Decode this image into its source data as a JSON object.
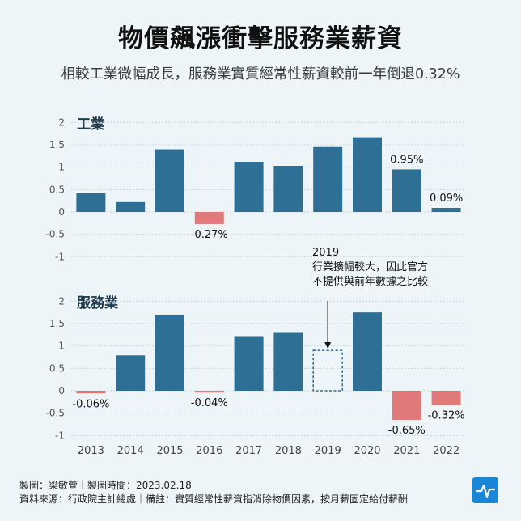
{
  "header": {
    "title": "物價飆漲衝擊服務業薪資",
    "subtitle": "相較工業微幅成長，服務業實質經常性薪資較前一年倒退0.32%"
  },
  "footer": {
    "line1": "製圖：梁敏萱｜製圖時間：2023.02.18",
    "line2": "資料來源：行政院主計總處｜備註：實質經常性薪資指消除物價因素，按月薪固定給付薪酬"
  },
  "colors": {
    "positive": "#2e6f96",
    "negative": "#e07a7a",
    "grid": "#c9d3da"
  },
  "chart_data": [
    {
      "type": "bar",
      "panel_label": "工業",
      "categories": [
        "2013",
        "2014",
        "2015",
        "2016",
        "2017",
        "2018",
        "2019",
        "2020",
        "2021",
        "2022"
      ],
      "values": [
        0.42,
        0.22,
        1.4,
        -0.27,
        1.12,
        1.03,
        1.45,
        1.67,
        0.95,
        0.09
      ],
      "data_labels": [
        "",
        "",
        "",
        "-0.27%",
        "",
        "",
        "",
        "",
        "0.95%",
        "0.09%"
      ],
      "yticks": [
        "2",
        "1.5",
        "1",
        "0.5",
        "0",
        "-0.5",
        "-1"
      ],
      "ylim": [
        -1,
        2
      ],
      "grid": true
    },
    {
      "type": "bar",
      "panel_label": "服務業",
      "categories": [
        "2013",
        "2014",
        "2015",
        "2016",
        "2017",
        "2018",
        "2019",
        "2020",
        "2021",
        "2022"
      ],
      "values": [
        -0.06,
        0.79,
        1.7,
        -0.04,
        1.22,
        1.31,
        null,
        1.75,
        -0.65,
        -0.32
      ],
      "placeholder_value": 0.9,
      "data_labels": [
        "-0.06%",
        "",
        "",
        "-0.04%",
        "",
        "",
        "",
        "",
        "-0.65%",
        "-0.32%"
      ],
      "yticks": [
        "2",
        "1.5",
        "1",
        "0.5",
        "0",
        "-0.5",
        "-1"
      ],
      "ylim": [
        -1,
        2
      ],
      "grid": true,
      "annotation": {
        "year": "2019",
        "line1": "行業擴幅較大，因此官方",
        "line2": "不提供與前年數據之比較"
      }
    }
  ]
}
